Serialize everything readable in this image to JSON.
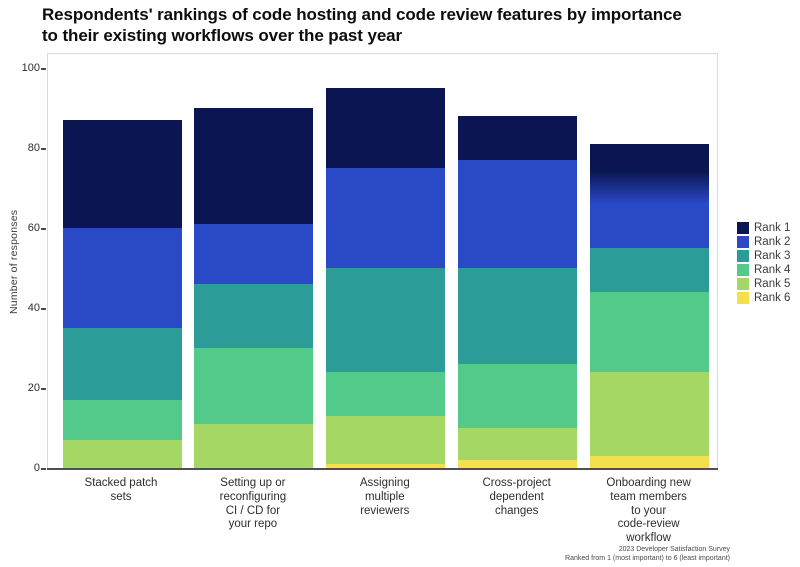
{
  "title": "Respondents' rankings of code hosting and code review features by importance to their existing workflows over the past year",
  "ylabel": "Number of responses",
  "footer": {
    "line1": "2023 Developer Satisfaction Survey",
    "line2": "Ranked from 1 (most important) to 6 (least important)"
  },
  "chart_data": {
    "type": "bar",
    "stacked": true,
    "grid": false,
    "legend_position": "right",
    "ylim": [
      0,
      100
    ],
    "yticks": [
      0,
      20,
      40,
      60,
      80,
      100
    ],
    "categories": [
      "Stacked patch\nsets",
      "Setting up or\nreconfiguring\nCI / CD for\nyour repo",
      "Assigning\nmultiple\nreviewers",
      "Cross-project\ndependent\nchanges",
      "Onboarding new\nteam members\nto your\ncode-review\nworkflow"
    ],
    "series": [
      {
        "name": "Rank 1",
        "color": "#0a1551",
        "values": [
          27,
          29,
          20,
          11,
          15
        ]
      },
      {
        "name": "Rank 2",
        "color": "#2a49c7",
        "values": [
          25,
          15,
          25,
          27,
          11
        ]
      },
      {
        "name": "Rank 3",
        "color": "#2c9c99",
        "values": [
          18,
          16,
          26,
          24,
          11
        ]
      },
      {
        "name": "Rank 4",
        "color": "#54ca8a",
        "values": [
          10,
          19,
          11,
          16,
          20
        ]
      },
      {
        "name": "Rank 5",
        "color": "#a5d765",
        "values": [
          7,
          11,
          12,
          8,
          21
        ]
      },
      {
        "name": "Rank 6",
        "color": "#f3e04c",
        "values": [
          0,
          0,
          1,
          2,
          3
        ]
      }
    ],
    "totals": [
      87,
      90,
      95,
      88,
      81
    ],
    "noisy_boundary": {
      "category_index": 4,
      "between": [
        "Rank 1",
        "Rank 2"
      ]
    }
  }
}
